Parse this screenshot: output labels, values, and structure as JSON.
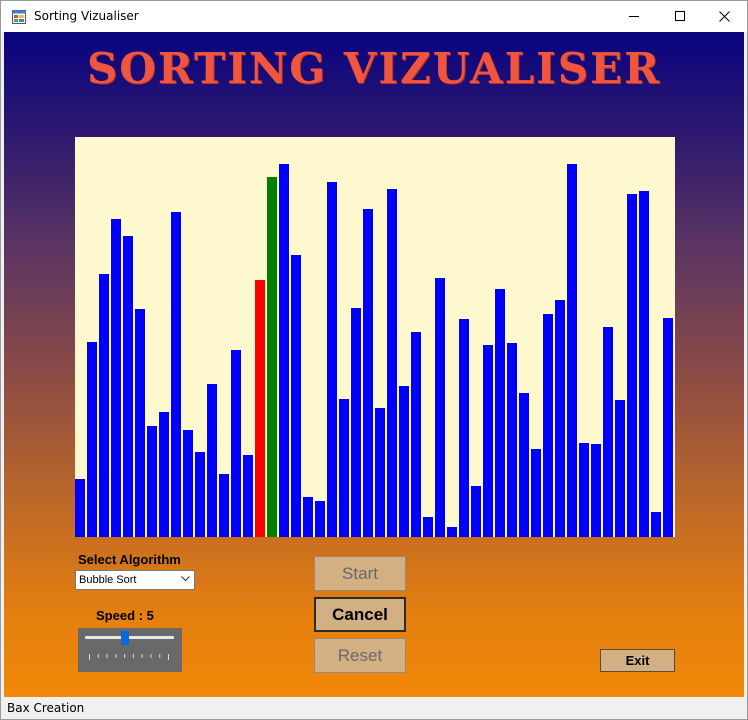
{
  "window": {
    "title": "Sorting Vizualiser",
    "icon": "winforms-app-icon",
    "controls": [
      "minimize-icon",
      "maximize-icon",
      "close-icon"
    ]
  },
  "app": {
    "heading": "SORTING VIZUALISER"
  },
  "bars": {
    "background_color": "#fef8cf",
    "default_color": "#0000ff",
    "compare_color": "#ff0000",
    "swap_color": "#008000",
    "max_value": 400,
    "values": [
      58,
      195,
      263,
      318,
      301,
      228,
      111,
      125,
      325,
      107,
      85,
      153,
      63,
      187,
      82,
      257,
      360,
      373,
      282,
      40,
      36,
      355,
      138,
      229,
      328,
      129,
      348,
      151,
      205,
      20,
      259,
      10,
      218,
      51,
      192,
      248,
      194,
      144,
      88,
      223,
      237,
      373,
      94,
      93,
      210,
      137,
      343,
      346,
      25,
      219
    ],
    "highlight": [
      {
        "index": 15,
        "state": "compare"
      },
      {
        "index": 16,
        "state": "swap"
      }
    ]
  },
  "algorithm": {
    "label": "Select Algorithm",
    "selected": "Bubble Sort",
    "dropdown_icon": "chevron-down-icon"
  },
  "speed": {
    "label": "Speed : 5",
    "value": 5,
    "min": 1,
    "max": 10
  },
  "buttons": {
    "start": "Start",
    "cancel": "Cancel",
    "reset": "Reset",
    "exit": "Exit"
  },
  "status": {
    "text": "Bax Creation"
  }
}
